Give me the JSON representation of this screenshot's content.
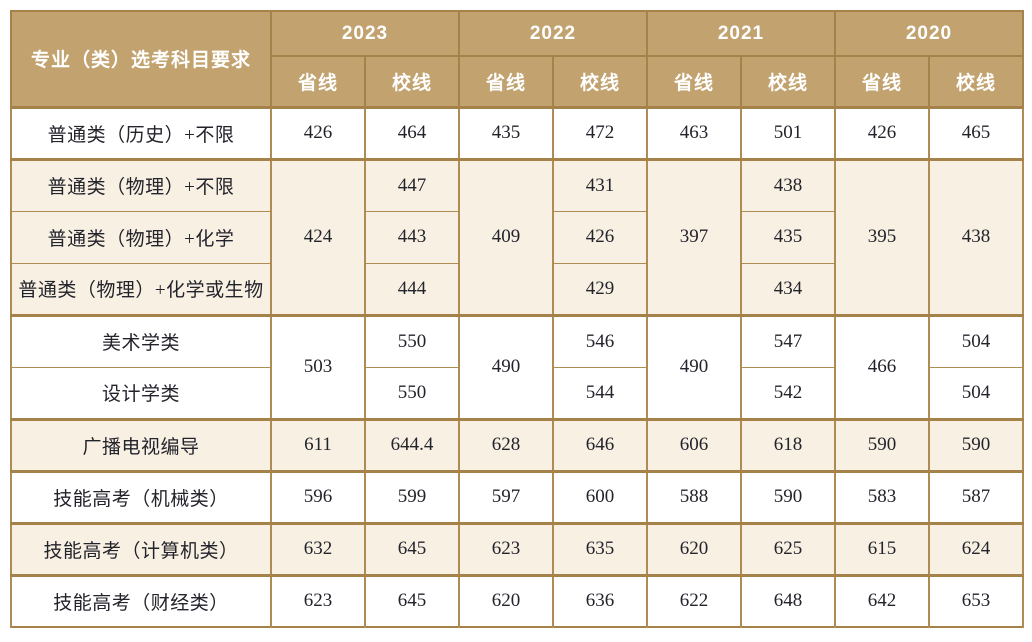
{
  "colors": {
    "header_bg": "#c2a370",
    "header_text": "#ffffff",
    "border_strong": "#a5824a",
    "border_light": "#b08c55",
    "cream_bg": "#f8f1e3",
    "body_text": "#23232c"
  },
  "table": {
    "corner_header": "专业（类）选考科目要求",
    "years": [
      "2023",
      "2022",
      "2021",
      "2020"
    ],
    "line_types": [
      "省线",
      "校线"
    ],
    "rows": [
      {
        "label": "普通类（历史）+不限",
        "bg": "white",
        "group_start": true,
        "cells": [
          {
            "v": "426"
          },
          {
            "v": "464"
          },
          {
            "v": "435"
          },
          {
            "v": "472"
          },
          {
            "v": "463"
          },
          {
            "v": "501"
          },
          {
            "v": "426"
          },
          {
            "v": "465"
          }
        ]
      },
      {
        "label": "普通类（物理）+不限",
        "bg": "cream",
        "group_start": true,
        "cells": [
          {
            "v": "424",
            "rs": 3
          },
          {
            "v": "447"
          },
          {
            "v": "409",
            "rs": 3
          },
          {
            "v": "431"
          },
          {
            "v": "397",
            "rs": 3
          },
          {
            "v": "438"
          },
          {
            "v": "395",
            "rs": 3
          },
          {
            "v": "438",
            "rs": 3
          }
        ]
      },
      {
        "label": "普通类（物理）+化学",
        "bg": "cream",
        "group_start": false,
        "cells": [
          null,
          {
            "v": "443"
          },
          null,
          {
            "v": "426"
          },
          null,
          {
            "v": "435"
          },
          null,
          null
        ]
      },
      {
        "label": "普通类（物理）+化学或生物",
        "bg": "cream",
        "group_start": false,
        "cells": [
          null,
          {
            "v": "444"
          },
          null,
          {
            "v": "429"
          },
          null,
          {
            "v": "434"
          },
          null,
          null
        ]
      },
      {
        "label": "美术学类",
        "bg": "white",
        "group_start": true,
        "cells": [
          {
            "v": "503",
            "rs": 2
          },
          {
            "v": "550"
          },
          {
            "v": "490",
            "rs": 2
          },
          {
            "v": "546"
          },
          {
            "v": "490",
            "rs": 2
          },
          {
            "v": "547"
          },
          {
            "v": "466",
            "rs": 2
          },
          {
            "v": "504"
          }
        ]
      },
      {
        "label": "设计学类",
        "bg": "white",
        "group_start": false,
        "cells": [
          null,
          {
            "v": "550"
          },
          null,
          {
            "v": "544"
          },
          null,
          {
            "v": "542"
          },
          null,
          {
            "v": "504"
          }
        ]
      },
      {
        "label": "广播电视编导",
        "bg": "cream",
        "group_start": true,
        "cells": [
          {
            "v": "611"
          },
          {
            "v": "644.4"
          },
          {
            "v": "628"
          },
          {
            "v": "646"
          },
          {
            "v": "606"
          },
          {
            "v": "618"
          },
          {
            "v": "590"
          },
          {
            "v": "590"
          }
        ]
      },
      {
        "label": "技能高考（机械类）",
        "bg": "white",
        "group_start": true,
        "cells": [
          {
            "v": "596"
          },
          {
            "v": "599"
          },
          {
            "v": "597"
          },
          {
            "v": "600"
          },
          {
            "v": "588"
          },
          {
            "v": "590"
          },
          {
            "v": "583"
          },
          {
            "v": "587"
          }
        ]
      },
      {
        "label": "技能高考（计算机类）",
        "bg": "cream",
        "group_start": true,
        "cells": [
          {
            "v": "632"
          },
          {
            "v": "645"
          },
          {
            "v": "623"
          },
          {
            "v": "635"
          },
          {
            "v": "620"
          },
          {
            "v": "625"
          },
          {
            "v": "615"
          },
          {
            "v": "624"
          }
        ]
      },
      {
        "label": "技能高考（财经类）",
        "bg": "white",
        "group_start": true,
        "cells": [
          {
            "v": "623"
          },
          {
            "v": "645"
          },
          {
            "v": "620"
          },
          {
            "v": "636"
          },
          {
            "v": "622"
          },
          {
            "v": "648"
          },
          {
            "v": "642"
          },
          {
            "v": "653"
          }
        ]
      }
    ]
  }
}
